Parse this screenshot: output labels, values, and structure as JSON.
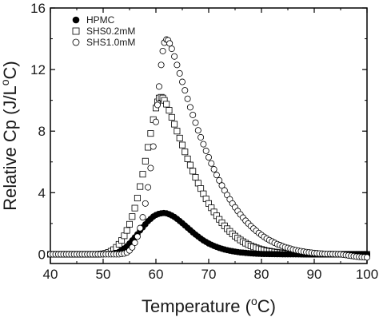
{
  "chart_data": {
    "type": "scatter",
    "x_tick_labels": [
      "40",
      "50",
      "60",
      "70",
      "80",
      "90",
      "100"
    ],
    "y_tick_labels": [
      "0",
      "4",
      "8",
      "12",
      "16"
    ],
    "x_ticks": [
      40,
      50,
      60,
      70,
      80,
      90,
      100
    ],
    "y_ticks": [
      0,
      4,
      8,
      12,
      16
    ],
    "xlim": [
      40,
      100
    ],
    "ylim": [
      -0.6,
      16
    ],
    "xlabel_main": "Temperature (",
    "xlabel_degree": "o",
    "xlabel_unit": "C)",
    "ylabel_main": "Relative Cp (J/L",
    "ylabel_degree": "o",
    "ylabel_unit": "C)",
    "grid": false,
    "legend_position": "top-left",
    "series": [
      {
        "name": "HPMC",
        "marker": "filled-circle",
        "color": "#000000",
        "points": [
          [
            40,
            0
          ],
          [
            41,
            0
          ],
          [
            42,
            0
          ],
          [
            43,
            0
          ],
          [
            44,
            0
          ],
          [
            45,
            0
          ],
          [
            46,
            0
          ],
          [
            47,
            0
          ],
          [
            48,
            0
          ],
          [
            49,
            0
          ],
          [
            50,
            0
          ],
          [
            51,
            0.02
          ],
          [
            52,
            0.05
          ],
          [
            52.5,
            0.08
          ],
          [
            53,
            0.15
          ],
          [
            53.5,
            0.25
          ],
          [
            54,
            0.38
          ],
          [
            54.5,
            0.52
          ],
          [
            55,
            0.7
          ],
          [
            55.5,
            0.9
          ],
          [
            56,
            1.1
          ],
          [
            56.5,
            1.3
          ],
          [
            57,
            1.55
          ],
          [
            57.5,
            1.75
          ],
          [
            58,
            1.95
          ],
          [
            58.5,
            2.15
          ],
          [
            59,
            2.3
          ],
          [
            59.5,
            2.45
          ],
          [
            60,
            2.55
          ],
          [
            60.5,
            2.62
          ],
          [
            61,
            2.66
          ],
          [
            61.5,
            2.68
          ],
          [
            62,
            2.66
          ],
          [
            62.5,
            2.6
          ],
          [
            63,
            2.52
          ],
          [
            63.5,
            2.42
          ],
          [
            64,
            2.3
          ],
          [
            64.5,
            2.16
          ],
          [
            65,
            2.02
          ],
          [
            65.5,
            1.87
          ],
          [
            66,
            1.72
          ],
          [
            66.5,
            1.57
          ],
          [
            67,
            1.42
          ],
          [
            67.5,
            1.28
          ],
          [
            68,
            1.15
          ],
          [
            68.5,
            1.02
          ],
          [
            69,
            0.9
          ],
          [
            69.5,
            0.8
          ],
          [
            70,
            0.7
          ],
          [
            71,
            0.54
          ],
          [
            72,
            0.41
          ],
          [
            73,
            0.31
          ],
          [
            74,
            0.23
          ],
          [
            75,
            0.17
          ],
          [
            76,
            0.12
          ],
          [
            77,
            0.09
          ],
          [
            78,
            0.06
          ],
          [
            79,
            0.04
          ],
          [
            80,
            0.02
          ],
          [
            82,
            0.01
          ],
          [
            84,
            0
          ],
          [
            86,
            0
          ],
          [
            88,
            0
          ],
          [
            90,
            0
          ],
          [
            92,
            0
          ],
          [
            94,
            0
          ],
          [
            96,
            0
          ],
          [
            98,
            0
          ],
          [
            100,
            0
          ]
        ]
      },
      {
        "name": "SHS0.2mM",
        "marker": "open-square",
        "color": "#000000",
        "points": [
          [
            40,
            0
          ],
          [
            42,
            0
          ],
          [
            44,
            0
          ],
          [
            46,
            0
          ],
          [
            48,
            0
          ],
          [
            49,
            0
          ],
          [
            50,
            0.03
          ],
          [
            50.5,
            0.06
          ],
          [
            51,
            0.12
          ],
          [
            51.5,
            0.2
          ],
          [
            52,
            0.3
          ],
          [
            52.5,
            0.45
          ],
          [
            53,
            0.65
          ],
          [
            53.5,
            0.9
          ],
          [
            54,
            1.2
          ],
          [
            54.5,
            1.55
          ],
          [
            55,
            1.95
          ],
          [
            55.5,
            2.45
          ],
          [
            56,
            3.0
          ],
          [
            56.5,
            3.65
          ],
          [
            57,
            4.4
          ],
          [
            57.5,
            5.2
          ],
          [
            58,
            6.05
          ],
          [
            58.5,
            6.95
          ],
          [
            59,
            7.85
          ],
          [
            59.5,
            8.75
          ],
          [
            60,
            9.5
          ],
          [
            60.3,
            9.9
          ],
          [
            60.6,
            10.15
          ],
          [
            61,
            10.2
          ],
          [
            61.3,
            10.15
          ],
          [
            61.6,
            10.0
          ],
          [
            62,
            9.75
          ],
          [
            62.5,
            9.35
          ],
          [
            63,
            8.9
          ],
          [
            63.5,
            8.45
          ],
          [
            64,
            8.0
          ],
          [
            64.5,
            7.55
          ],
          [
            65,
            7.1
          ],
          [
            65.5,
            6.65
          ],
          [
            66,
            6.2
          ],
          [
            66.5,
            5.8
          ],
          [
            67,
            5.4
          ],
          [
            67.5,
            5.0
          ],
          [
            68,
            4.62
          ],
          [
            68.5,
            4.27
          ],
          [
            69,
            3.93
          ],
          [
            69.5,
            3.6
          ],
          [
            70,
            3.3
          ],
          [
            70.5,
            3.02
          ],
          [
            71,
            2.75
          ],
          [
            71.5,
            2.5
          ],
          [
            72,
            2.27
          ],
          [
            72.5,
            2.05
          ],
          [
            73,
            1.85
          ],
          [
            73.5,
            1.66
          ],
          [
            74,
            1.49
          ],
          [
            74.5,
            1.33
          ],
          [
            75,
            1.18
          ],
          [
            75.5,
            1.05
          ],
          [
            76,
            0.93
          ],
          [
            76.5,
            0.82
          ],
          [
            77,
            0.72
          ],
          [
            77.5,
            0.63
          ],
          [
            78,
            0.55
          ],
          [
            78.5,
            0.48
          ],
          [
            79,
            0.42
          ],
          [
            79.5,
            0.36
          ],
          [
            80,
            0.31
          ],
          [
            81,
            0.23
          ],
          [
            82,
            0.17
          ],
          [
            83,
            0.12
          ],
          [
            84,
            0.08
          ],
          [
            85,
            0.05
          ],
          [
            86,
            0.03
          ],
          [
            88,
            0.01
          ],
          [
            90,
            0
          ],
          [
            92,
            0
          ],
          [
            94,
            0
          ],
          [
            96,
            0
          ],
          [
            98,
            0
          ],
          [
            100,
            0
          ]
        ]
      },
      {
        "name": "SHS1.0mM",
        "marker": "open-circle",
        "color": "#000000",
        "points": [
          [
            40,
            0
          ],
          [
            42,
            0
          ],
          [
            44,
            0
          ],
          [
            46,
            0
          ],
          [
            48,
            0
          ],
          [
            50,
            0
          ],
          [
            51,
            0
          ],
          [
            52,
            0
          ],
          [
            53,
            0
          ],
          [
            54,
            0.05
          ],
          [
            54.5,
            0.12
          ],
          [
            55,
            0.25
          ],
          [
            55.5,
            0.45
          ],
          [
            56,
            0.75
          ],
          [
            56.5,
            1.15
          ],
          [
            57,
            1.7
          ],
          [
            57.5,
            2.4
          ],
          [
            58,
            3.3
          ],
          [
            58.5,
            4.35
          ],
          [
            59,
            5.6
          ],
          [
            59.5,
            7.0
          ],
          [
            60,
            8.6
          ],
          [
            60.3,
            9.7
          ],
          [
            60.6,
            10.9
          ],
          [
            61,
            12.3
          ],
          [
            61.3,
            13.2
          ],
          [
            61.6,
            13.75
          ],
          [
            62,
            13.95
          ],
          [
            62.3,
            13.9
          ],
          [
            62.6,
            13.7
          ],
          [
            63,
            13.35
          ],
          [
            63.5,
            12.85
          ],
          [
            64,
            12.3
          ],
          [
            64.5,
            11.75
          ],
          [
            65,
            11.2
          ],
          [
            65.5,
            10.65
          ],
          [
            66,
            10.1
          ],
          [
            66.5,
            9.55
          ],
          [
            67,
            9.05
          ],
          [
            67.5,
            8.55
          ],
          [
            68,
            8.05
          ],
          [
            68.5,
            7.6
          ],
          [
            69,
            7.15
          ],
          [
            69.5,
            6.72
          ],
          [
            70,
            6.3
          ],
          [
            70.5,
            5.9
          ],
          [
            71,
            5.52
          ],
          [
            71.5,
            5.15
          ],
          [
            72,
            4.8
          ],
          [
            72.5,
            4.47
          ],
          [
            73,
            4.15
          ],
          [
            73.5,
            3.85
          ],
          [
            74,
            3.57
          ],
          [
            74.5,
            3.3
          ],
          [
            75,
            3.05
          ],
          [
            75.5,
            2.81
          ],
          [
            76,
            2.59
          ],
          [
            76.5,
            2.38
          ],
          [
            77,
            2.18
          ],
          [
            77.5,
            2.0
          ],
          [
            78,
            1.83
          ],
          [
            78.5,
            1.67
          ],
          [
            79,
            1.52
          ],
          [
            79.5,
            1.38
          ],
          [
            80,
            1.25
          ],
          [
            80.5,
            1.13
          ],
          [
            81,
            1.02
          ],
          [
            81.5,
            0.92
          ],
          [
            82,
            0.83
          ],
          [
            82.5,
            0.74
          ],
          [
            83,
            0.66
          ],
          [
            83.5,
            0.59
          ],
          [
            84,
            0.52
          ],
          [
            84.5,
            0.46
          ],
          [
            85,
            0.41
          ],
          [
            85.5,
            0.36
          ],
          [
            86,
            0.31
          ],
          [
            86.5,
            0.27
          ],
          [
            87,
            0.23
          ],
          [
            87.5,
            0.2
          ],
          [
            88,
            0.17
          ],
          [
            88.5,
            0.14
          ],
          [
            89,
            0.12
          ],
          [
            89.5,
            0.1
          ],
          [
            90,
            0.08
          ],
          [
            91,
            0.05
          ],
          [
            92,
            0.03
          ],
          [
            93,
            0.02
          ],
          [
            94,
            0.01
          ],
          [
            95,
            0
          ],
          [
            96,
            -0.05
          ],
          [
            97,
            -0.1
          ],
          [
            98,
            -0.15
          ],
          [
            99,
            -0.18
          ],
          [
            100,
            -0.2
          ]
        ]
      }
    ]
  }
}
